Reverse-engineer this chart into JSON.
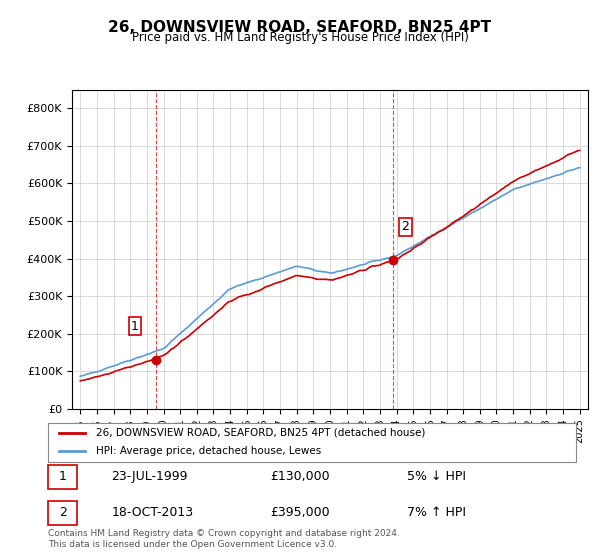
{
  "title": "26, DOWNSVIEW ROAD, SEAFORD, BN25 4PT",
  "subtitle": "Price paid vs. HM Land Registry's House Price Index (HPI)",
  "legend_line1": "26, DOWNSVIEW ROAD, SEAFORD, BN25 4PT (detached house)",
  "legend_line2": "HPI: Average price, detached house, Lewes",
  "table_rows": [
    {
      "num": "1",
      "date": "23-JUL-1999",
      "price": "£130,000",
      "hpi": "5% ↓ HPI"
    },
    {
      "num": "2",
      "date": "18-OCT-2013",
      "price": "£395,000",
      "hpi": "7% ↑ HPI"
    }
  ],
  "footnote": "Contains HM Land Registry data © Crown copyright and database right 2024.\nThis data is licensed under the Open Government Licence v3.0.",
  "sale1_year": 1999.55,
  "sale1_price": 130000,
  "sale2_year": 2013.8,
  "sale2_price": 395000,
  "red_color": "#cc0000",
  "blue_color": "#5b9bd5",
  "vline_color": "#cc0000",
  "background_color": "#ffffff",
  "grid_color": "#cccccc",
  "ylim_max": 850000,
  "ylim_min": 0
}
